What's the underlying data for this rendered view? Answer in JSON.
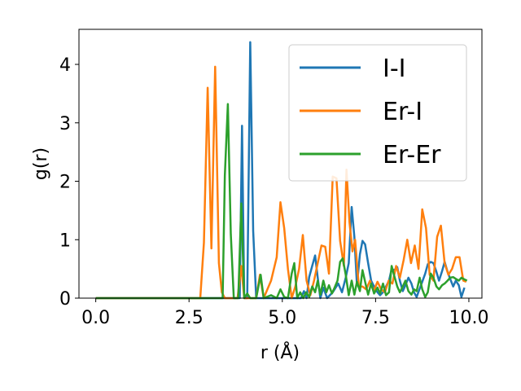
{
  "chart_data": {
    "type": "line",
    "xlabel": "r (Å)",
    "ylabel": "g(r)",
    "xlim": [
      -0.45,
      10.35
    ],
    "ylim": [
      0,
      4.6
    ],
    "xticks": [
      0.0,
      2.5,
      5.0,
      7.5,
      10.0
    ],
    "xtick_labels": [
      "0.0",
      "2.5",
      "5.0",
      "7.5",
      "10.0"
    ],
    "yticks": [
      0,
      1,
      2,
      3,
      4
    ],
    "ytick_labels": [
      "0",
      "1",
      "2",
      "3",
      "4"
    ],
    "grid": false,
    "legend_position": "top-right",
    "series": [
      {
        "name": "I-I",
        "color": "#1f77b4",
        "points": [
          [
            0,
            0
          ],
          [
            3.7,
            0
          ],
          [
            3.78,
            0
          ],
          [
            3.86,
            0
          ],
          [
            3.92,
            2.95
          ],
          [
            3.98,
            0
          ],
          [
            4.06,
            0
          ],
          [
            4.14,
            4.38
          ],
          [
            4.22,
            1.15
          ],
          [
            4.3,
            0
          ],
          [
            4.5,
            0
          ],
          [
            5.0,
            0
          ],
          [
            5.5,
            0
          ],
          [
            5.58,
            0.12
          ],
          [
            5.65,
            0
          ],
          [
            5.72,
            0.36
          ],
          [
            5.8,
            0.55
          ],
          [
            5.88,
            0.73
          ],
          [
            5.95,
            0.35
          ],
          [
            6.02,
            0
          ],
          [
            6.1,
            0.18
          ],
          [
            6.2,
            0
          ],
          [
            6.35,
            0.1
          ],
          [
            6.5,
            0.25
          ],
          [
            6.6,
            0.1
          ],
          [
            6.7,
            0.35
          ],
          [
            6.78,
            0.6
          ],
          [
            6.86,
            1.56
          ],
          [
            6.93,
            1.05
          ],
          [
            7.0,
            0.22
          ],
          [
            7.08,
            0.75
          ],
          [
            7.15,
            0.98
          ],
          [
            7.22,
            0.92
          ],
          [
            7.3,
            0.6
          ],
          [
            7.38,
            0.3
          ],
          [
            7.46,
            0.2
          ],
          [
            7.55,
            0.1
          ],
          [
            7.62,
            0.05
          ],
          [
            7.7,
            0.1
          ],
          [
            7.78,
            0.2
          ],
          [
            7.86,
            0.3
          ],
          [
            7.93,
            0.5
          ],
          [
            8.0,
            0.48
          ],
          [
            8.08,
            0.53
          ],
          [
            8.15,
            0.3
          ],
          [
            8.23,
            0.12
          ],
          [
            8.3,
            0.22
          ],
          [
            8.38,
            0.35
          ],
          [
            8.46,
            0.25
          ],
          [
            8.53,
            0.1
          ],
          [
            8.6,
            0.02
          ],
          [
            8.68,
            0.16
          ],
          [
            8.75,
            0.28
          ],
          [
            8.83,
            0.42
          ],
          [
            8.9,
            0.58
          ],
          [
            8.98,
            0.62
          ],
          [
            9.05,
            0.6
          ],
          [
            9.13,
            0.45
          ],
          [
            9.2,
            0.3
          ],
          [
            9.28,
            0.46
          ],
          [
            9.35,
            0.62
          ],
          [
            9.43,
            0.45
          ],
          [
            9.5,
            0.33
          ],
          [
            9.58,
            0.2
          ],
          [
            9.65,
            0.3
          ],
          [
            9.73,
            0.22
          ],
          [
            9.8,
            0.02
          ],
          [
            9.88,
            0.18
          ]
        ]
      },
      {
        "name": "Er-I",
        "color": "#ff7f0e",
        "points": [
          [
            0,
            0
          ],
          [
            2.8,
            0
          ],
          [
            2.9,
            0.95
          ],
          [
            3.0,
            3.6
          ],
          [
            3.1,
            0.85
          ],
          [
            3.2,
            3.96
          ],
          [
            3.3,
            0.6
          ],
          [
            3.38,
            0.1
          ],
          [
            3.46,
            0
          ],
          [
            3.8,
            0
          ],
          [
            3.9,
            0.55
          ],
          [
            3.98,
            0
          ],
          [
            4.1,
            0
          ],
          [
            4.3,
            0
          ],
          [
            4.4,
            0.4
          ],
          [
            4.5,
            0
          ],
          [
            4.7,
            0.3
          ],
          [
            4.85,
            0.7
          ],
          [
            4.95,
            1.64
          ],
          [
            5.05,
            1.2
          ],
          [
            5.15,
            0.5
          ],
          [
            5.25,
            0
          ],
          [
            5.35,
            0.2
          ],
          [
            5.45,
            0.5
          ],
          [
            5.55,
            1.08
          ],
          [
            5.65,
            0.3
          ],
          [
            5.75,
            0.05
          ],
          [
            5.85,
            0.3
          ],
          [
            5.95,
            0.6
          ],
          [
            6.05,
            0.9
          ],
          [
            6.15,
            0.88
          ],
          [
            6.25,
            0.42
          ],
          [
            6.35,
            2.08
          ],
          [
            6.45,
            2.05
          ],
          [
            6.55,
            0.98
          ],
          [
            6.65,
            0.55
          ],
          [
            6.72,
            2.2
          ],
          [
            6.8,
            1.3
          ],
          [
            6.88,
            0.8
          ],
          [
            6.95,
            1.0
          ],
          [
            7.05,
            0.2
          ],
          [
            7.15,
            0.2
          ],
          [
            7.25,
            0.15
          ],
          [
            7.35,
            0.3
          ],
          [
            7.45,
            0.12
          ],
          [
            7.55,
            0.28
          ],
          [
            7.65,
            0.15
          ],
          [
            7.75,
            0.1
          ],
          [
            7.85,
            0.3
          ],
          [
            7.95,
            0.25
          ],
          [
            8.05,
            0.55
          ],
          [
            8.15,
            0.35
          ],
          [
            8.25,
            0.65
          ],
          [
            8.35,
            1.0
          ],
          [
            8.45,
            0.6
          ],
          [
            8.55,
            0.9
          ],
          [
            8.65,
            0.5
          ],
          [
            8.75,
            1.52
          ],
          [
            8.85,
            1.2
          ],
          [
            8.95,
            0.4
          ],
          [
            9.05,
            0.3
          ],
          [
            9.15,
            1.05
          ],
          [
            9.25,
            1.24
          ],
          [
            9.35,
            0.6
          ],
          [
            9.45,
            0.4
          ],
          [
            9.55,
            0.5
          ],
          [
            9.65,
            0.7
          ],
          [
            9.75,
            0.7
          ],
          [
            9.85,
            0.3
          ],
          [
            9.93,
            0.28
          ]
        ]
      },
      {
        "name": "Er-Er",
        "color": "#2ca02c",
        "points": [
          [
            0,
            0
          ],
          [
            3.3,
            0
          ],
          [
            3.4,
            0
          ],
          [
            3.46,
            2.1
          ],
          [
            3.54,
            3.32
          ],
          [
            3.62,
            1.1
          ],
          [
            3.7,
            0
          ],
          [
            3.82,
            0
          ],
          [
            3.9,
            1.62
          ],
          [
            3.98,
            0
          ],
          [
            4.06,
            0.08
          ],
          [
            4.14,
            0
          ],
          [
            4.22,
            0
          ],
          [
            4.3,
            0
          ],
          [
            4.42,
            0.4
          ],
          [
            4.5,
            0
          ],
          [
            4.7,
            0.05
          ],
          [
            4.85,
            0
          ],
          [
            4.95,
            0.15
          ],
          [
            5.05,
            0.02
          ],
          [
            5.15,
            0
          ],
          [
            5.25,
            0.42
          ],
          [
            5.32,
            0.6
          ],
          [
            5.4,
            0
          ],
          [
            5.48,
            0.1
          ],
          [
            5.56,
            0
          ],
          [
            5.64,
            0.1
          ],
          [
            5.72,
            0.02
          ],
          [
            5.8,
            0.2
          ],
          [
            5.88,
            0.1
          ],
          [
            5.95,
            0.3
          ],
          [
            6.02,
            0.06
          ],
          [
            6.1,
            0.3
          ],
          [
            6.18,
            0.1
          ],
          [
            6.25,
            0.22
          ],
          [
            6.33,
            0.08
          ],
          [
            6.4,
            0.18
          ],
          [
            6.48,
            0.3
          ],
          [
            6.55,
            0.62
          ],
          [
            6.62,
            0.68
          ],
          [
            6.7,
            0.4
          ],
          [
            6.78,
            0.05
          ],
          [
            6.86,
            0.3
          ],
          [
            6.93,
            0.06
          ],
          [
            7.0,
            0.28
          ],
          [
            7.08,
            0.12
          ],
          [
            7.15,
            0.48
          ],
          [
            7.22,
            0.28
          ],
          [
            7.3,
            0.06
          ],
          [
            7.38,
            0.25
          ],
          [
            7.46,
            0.08
          ],
          [
            7.55,
            0.18
          ],
          [
            7.62,
            0.08
          ],
          [
            7.7,
            0.25
          ],
          [
            7.78,
            0.05
          ],
          [
            7.86,
            0.1
          ],
          [
            7.93,
            0.55
          ],
          [
            8.0,
            0.38
          ],
          [
            8.08,
            0.2
          ],
          [
            8.15,
            0.1
          ],
          [
            8.23,
            0.2
          ],
          [
            8.3,
            0.3
          ],
          [
            8.38,
            0.12
          ],
          [
            8.46,
            0.06
          ],
          [
            8.53,
            0.15
          ],
          [
            8.6,
            0.12
          ],
          [
            8.68,
            0.35
          ],
          [
            8.75,
            0.15
          ],
          [
            8.83,
            0.02
          ],
          [
            8.9,
            0.1
          ],
          [
            8.98,
            0.42
          ],
          [
            9.05,
            0.35
          ],
          [
            9.13,
            0.2
          ],
          [
            9.2,
            0.15
          ],
          [
            9.28,
            0.22
          ],
          [
            9.35,
            0.25
          ],
          [
            9.43,
            0.3
          ],
          [
            9.5,
            0.35
          ],
          [
            9.58,
            0.36
          ],
          [
            9.65,
            0.33
          ],
          [
            9.73,
            0.3
          ],
          [
            9.8,
            0.35
          ],
          [
            9.88,
            0.32
          ],
          [
            9.95,
            0.3
          ]
        ]
      }
    ]
  }
}
